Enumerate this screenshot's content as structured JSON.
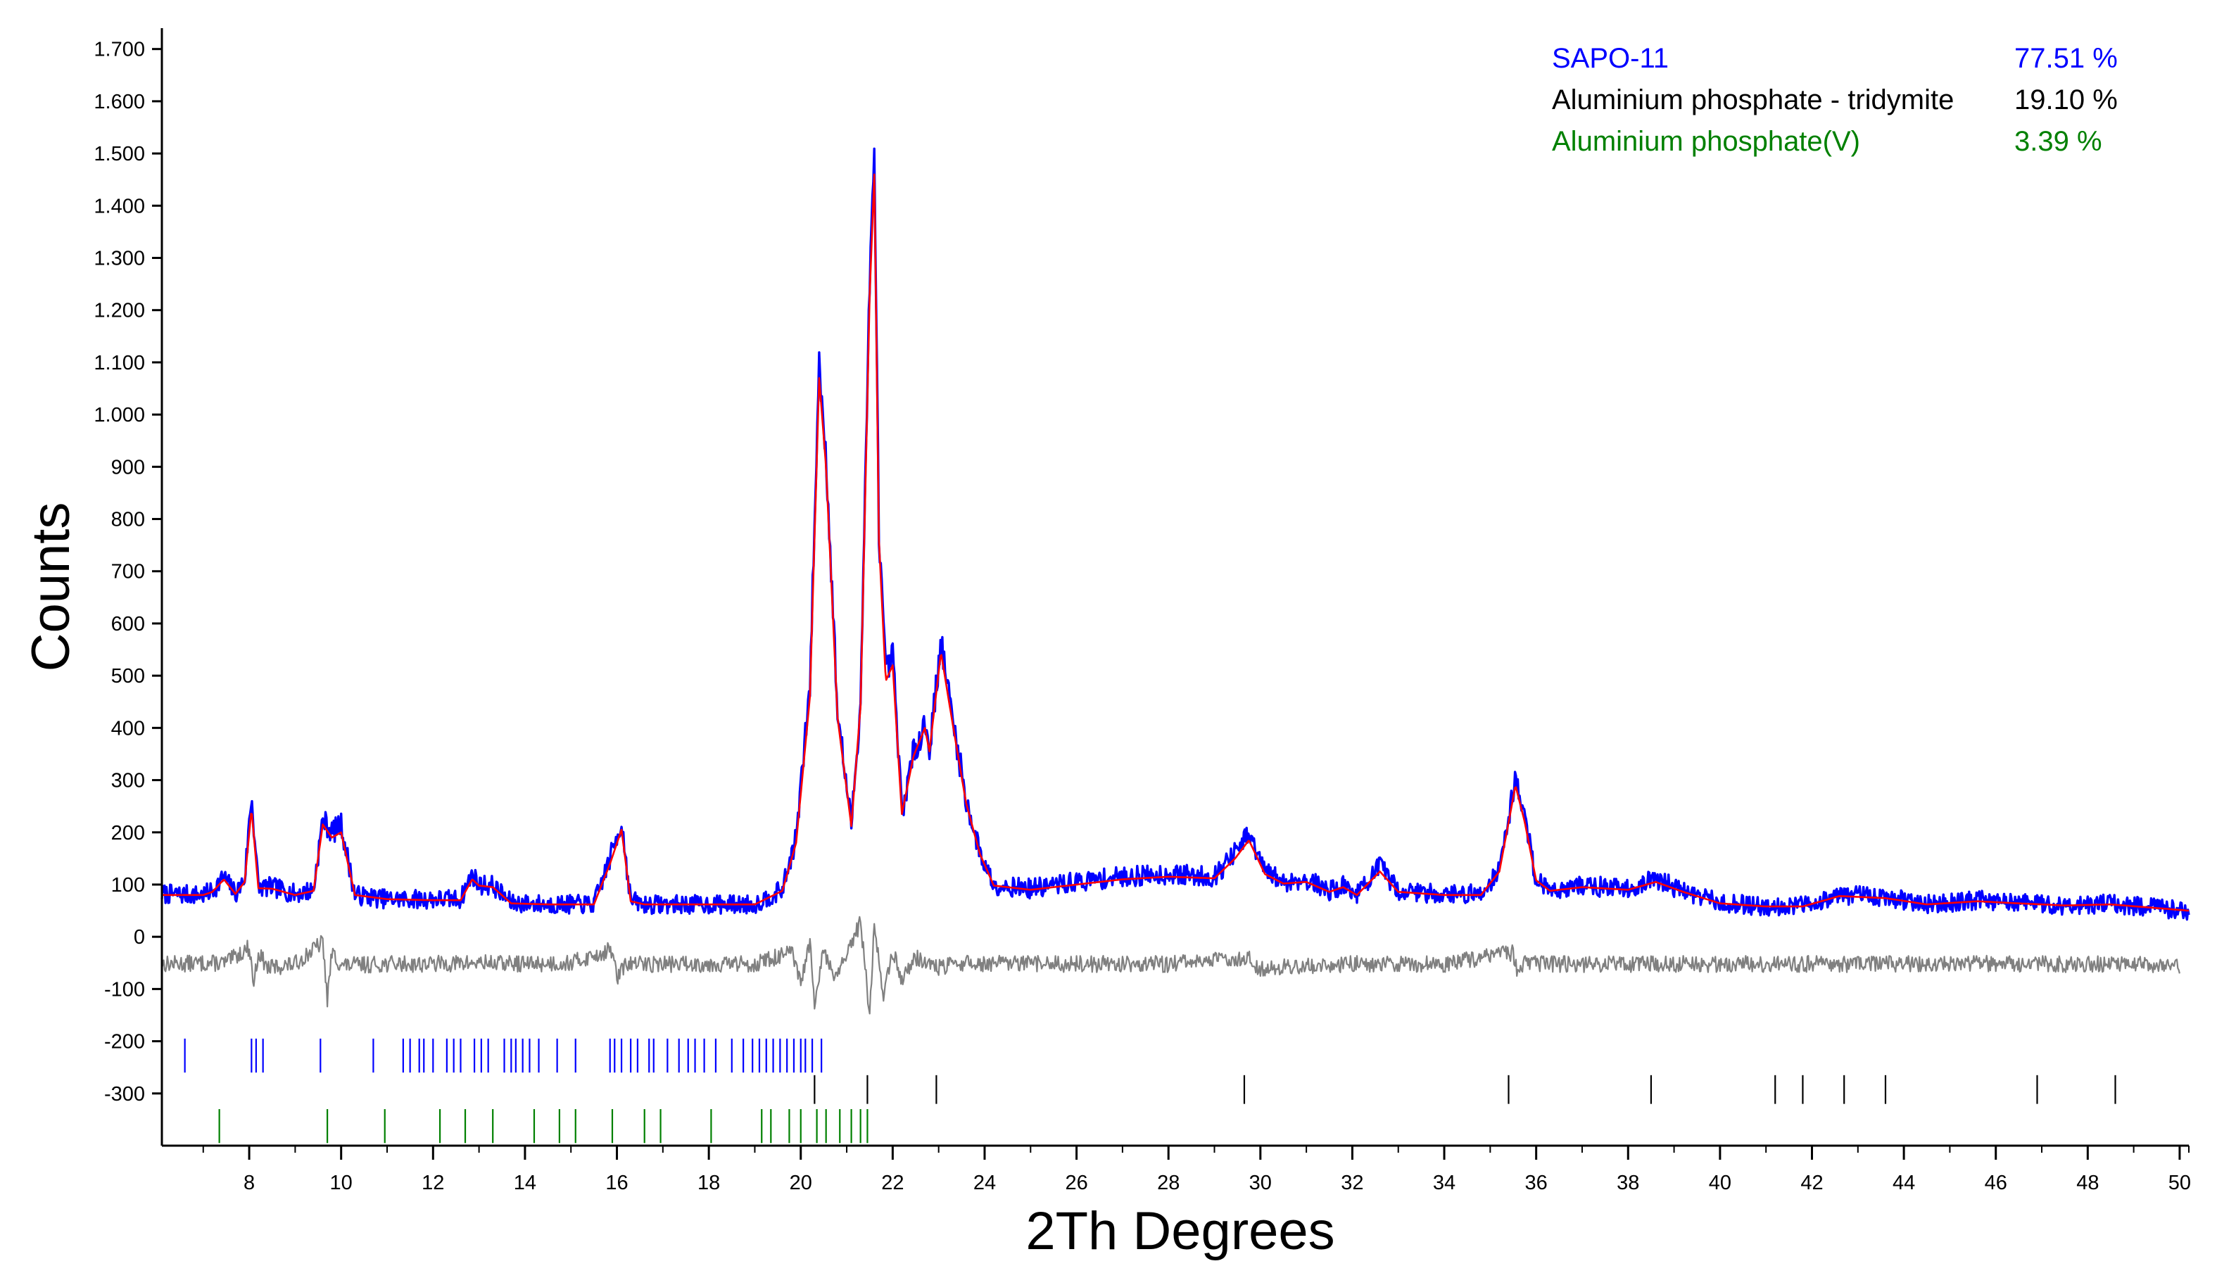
{
  "chart_data": {
    "type": "line",
    "title": "",
    "xlabel": "2Th Degrees",
    "ylabel": "Counts",
    "xlim": [
      6.1,
      50.2
    ],
    "ylim": [
      -400,
      1740
    ],
    "grid": false,
    "legend_placement": "top-right",
    "x_ticks": [
      8,
      10,
      12,
      14,
      16,
      18,
      20,
      22,
      24,
      26,
      28,
      30,
      32,
      34,
      36,
      38,
      40,
      42,
      44,
      46,
      48,
      50
    ],
    "x_tick_labels": [
      "8",
      "10",
      "12",
      "14",
      "16",
      "18",
      "20",
      "22",
      "24",
      "26",
      "28",
      "30",
      "32",
      "34",
      "36",
      "38",
      "40",
      "42",
      "44",
      "46",
      "48",
      "50"
    ],
    "y_ticks": [
      1700,
      1600,
      1500,
      1400,
      1300,
      1200,
      1100,
      1000,
      900,
      800,
      700,
      600,
      500,
      400,
      300,
      200,
      100,
      0,
      -100,
      -200,
      -300
    ],
    "y_tick_labels": [
      "1.700",
      "1.600",
      "1.500",
      "1.400",
      "1.300",
      "1.200",
      "1.100",
      "1.000",
      "900",
      "800",
      "700",
      "600",
      "500",
      "400",
      "300",
      "200",
      "100",
      "0",
      "-100",
      "-200",
      "-300"
    ],
    "legend": [
      {
        "name": "SAPO-11",
        "value": "77.51 %",
        "color": "#0000ff"
      },
      {
        "name": "Aluminium phosphate - tridymite",
        "value": "19.10 %",
        "color": "#000000"
      },
      {
        "name": "Aluminium phosphate(V)",
        "value": "3.39 %",
        "color": "#008000"
      }
    ],
    "series": [
      {
        "role": "observed",
        "color": "#0000ff",
        "x": [
          6.1,
          7.0,
          7.2,
          7.45,
          7.7,
          7.9,
          8.05,
          8.2,
          8.5,
          9.0,
          9.4,
          9.6,
          9.8,
          10.0,
          10.3,
          11.0,
          12.0,
          12.6,
          12.85,
          13.0,
          13.3,
          13.7,
          14.5,
          15.5,
          15.85,
          16.1,
          16.3,
          16.6,
          17.5,
          18.5,
          19.0,
          19.6,
          19.9,
          20.2,
          20.4,
          20.55,
          20.8,
          21.1,
          21.3,
          21.5,
          21.6,
          21.7,
          21.85,
          22.0,
          22.2,
          22.45,
          22.7,
          22.8,
          23.05,
          23.3,
          23.6,
          23.9,
          24.2,
          25.0,
          26.0,
          27.0,
          28.0,
          29.0,
          29.45,
          29.75,
          30.1,
          30.5,
          31.0,
          31.5,
          31.8,
          32.1,
          32.6,
          33.0,
          34.0,
          34.8,
          35.2,
          35.55,
          35.75,
          36.0,
          36.3,
          37.0,
          38.0,
          38.6,
          39.2,
          40.0,
          41.0,
          41.8,
          42.6,
          43.6,
          44.5,
          45.6,
          46.5,
          47.5,
          48.5,
          49.5,
          50.2
        ],
        "y": [
          82,
          80,
          88,
          115,
          82,
          110,
          270,
          95,
          95,
          82,
          90,
          225,
          200,
          215,
          80,
          72,
          72,
          72,
          120,
          100,
          98,
          65,
          62,
          62,
          150,
          220,
          70,
          62,
          62,
          62,
          62,
          90,
          190,
          480,
          1100,
          920,
          430,
          215,
          450,
          1260,
          1490,
          780,
          500,
          540,
          240,
          350,
          410,
          360,
          565,
          420,
          260,
          160,
          100,
          92,
          105,
          115,
          120,
          115,
          160,
          195,
          125,
          105,
          110,
          88,
          98,
          82,
          135,
          88,
          82,
          82,
          130,
          305,
          230,
          110,
          90,
          98,
          92,
          110,
          88,
          65,
          58,
          60,
          80,
          76,
          62,
          70,
          66,
          60,
          63,
          55,
          50
        ]
      },
      {
        "role": "calculated",
        "color": "#ff0000",
        "x": [
          6.1,
          7.0,
          7.2,
          7.45,
          7.7,
          7.9,
          8.05,
          8.2,
          8.5,
          9.0,
          9.4,
          9.6,
          9.8,
          10.0,
          10.3,
          11.0,
          12.0,
          12.6,
          12.85,
          13.0,
          13.3,
          13.7,
          14.5,
          15.5,
          15.85,
          16.1,
          16.3,
          16.6,
          17.5,
          18.5,
          19.0,
          19.6,
          19.9,
          20.2,
          20.4,
          20.55,
          20.8,
          21.1,
          21.3,
          21.5,
          21.6,
          21.7,
          21.85,
          22.0,
          22.2,
          22.45,
          22.7,
          22.8,
          23.05,
          23.3,
          23.6,
          23.9,
          24.2,
          25.0,
          26.0,
          27.0,
          28.0,
          29.0,
          29.45,
          29.75,
          30.1,
          30.5,
          31.0,
          31.5,
          31.8,
          32.1,
          32.6,
          33.0,
          34.0,
          34.8,
          35.2,
          35.55,
          35.75,
          36.0,
          36.3,
          37.0,
          38.0,
          38.6,
          39.2,
          40.0,
          41.0,
          41.8,
          42.6,
          43.6,
          44.5,
          45.6,
          46.5,
          47.5,
          48.5,
          49.5,
          50.2
        ],
        "y": [
          80,
          80,
          86,
          110,
          82,
          105,
          245,
          93,
          92,
          80,
          88,
          215,
          190,
          200,
          80,
          72,
          70,
          70,
          110,
          98,
          95,
          64,
          62,
          62,
          140,
          205,
          68,
          62,
          62,
          62,
          62,
          88,
          180,
          460,
          1070,
          900,
          420,
          212,
          440,
          1230,
          1460,
          760,
          490,
          520,
          235,
          345,
          400,
          355,
          545,
          410,
          255,
          158,
          98,
          90,
          100,
          110,
          115,
          112,
          150,
          185,
          120,
          102,
          105,
          86,
          95,
          80,
          125,
          86,
          80,
          80,
          125,
          290,
          220,
          108,
          88,
          95,
          90,
          105,
          86,
          64,
          58,
          58,
          78,
          74,
          62,
          68,
          64,
          60,
          62,
          55,
          50
        ]
      },
      {
        "role": "difference",
        "color": "#808080",
        "x": [
          6.1,
          7.5,
          8.0,
          8.1,
          8.2,
          8.4,
          9.0,
          9.6,
          9.7,
          9.8,
          10.0,
          11.0,
          12.0,
          13.0,
          14.0,
          15.0,
          15.9,
          16.0,
          16.2,
          17.0,
          18.0,
          19.0,
          19.8,
          20.0,
          20.2,
          20.3,
          20.5,
          20.7,
          21.0,
          21.3,
          21.5,
          21.6,
          21.8,
          22.0,
          22.2,
          22.5,
          23.0,
          23.5,
          24.0,
          26.0,
          28.0,
          29.7,
          30.0,
          32.0,
          34.0,
          35.5,
          35.6,
          35.8,
          36.0,
          38.0,
          40.0,
          42.0,
          44.0,
          46.0,
          48.0,
          50.0
        ],
        "y": [
          -52,
          -50,
          -20,
          -90,
          -30,
          -60,
          -52,
          -10,
          -120,
          -30,
          -55,
          -52,
          -52,
          -50,
          -52,
          -50,
          -25,
          -80,
          -52,
          -52,
          -52,
          -52,
          -30,
          -90,
          -10,
          -140,
          -20,
          -80,
          -40,
          30,
          -150,
          20,
          -110,
          -30,
          -80,
          -40,
          -60,
          -50,
          -52,
          -52,
          -52,
          -40,
          -60,
          -52,
          -52,
          -30,
          -75,
          -45,
          -52,
          -52,
          -52,
          -52,
          -52,
          -52,
          -52,
          -55
        ]
      }
    ],
    "reflection_markers": [
      {
        "phase": "SAPO-11",
        "color": "#0000ff",
        "y_range": [
          -260,
          -195
        ],
        "positions": [
          6.6,
          8.05,
          8.15,
          8.3,
          9.55,
          10.7,
          11.35,
          11.5,
          11.7,
          11.8,
          12.0,
          12.3,
          12.45,
          12.6,
          12.9,
          13.05,
          13.2,
          13.55,
          13.7,
          13.8,
          13.95,
          14.1,
          14.3,
          14.7,
          15.1,
          15.85,
          15.95,
          16.1,
          16.3,
          16.45,
          16.7,
          16.8,
          17.1,
          17.35,
          17.55,
          17.7,
          17.9,
          18.15,
          18.5,
          18.75,
          18.95,
          19.1,
          19.25,
          19.4,
          19.55,
          19.7,
          19.85,
          20.0,
          20.1,
          20.25,
          20.45
        ]
      },
      {
        "phase": "Aluminium phosphate - tridymite",
        "color": "#000000",
        "y_range": [
          -320,
          -265
        ],
        "positions": [
          20.3,
          21.45,
          22.95,
          29.65,
          35.4,
          38.5,
          41.2,
          41.8,
          42.7,
          43.6,
          46.9,
          48.6
        ]
      },
      {
        "phase": "Aluminium phosphate(V)",
        "color": "#008000",
        "y_range": [
          -395,
          -330
        ],
        "positions": [
          7.35,
          9.7,
          10.95,
          12.15,
          12.7,
          13.3,
          14.2,
          14.75,
          15.1,
          15.9,
          16.6,
          16.95,
          18.05,
          19.15,
          19.35,
          19.75,
          20.0,
          20.35,
          20.55,
          20.85,
          21.1,
          21.3,
          21.45
        ]
      }
    ]
  }
}
